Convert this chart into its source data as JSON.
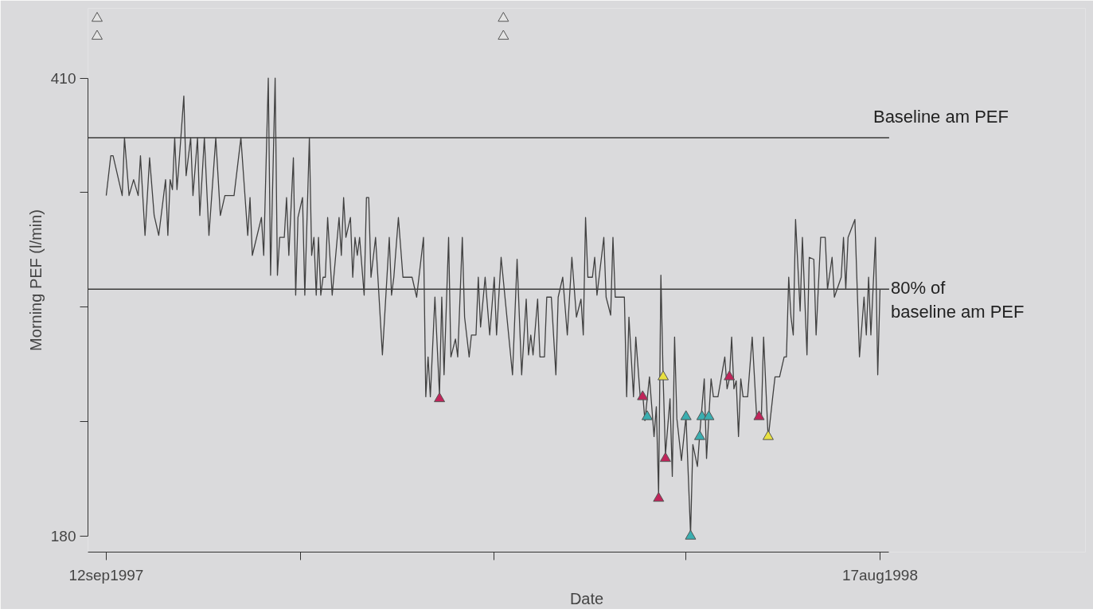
{
  "chart_data": {
    "type": "line",
    "xlabel": "Date",
    "ylabel": "Morning PEF (l/min)",
    "xlim": [
      "1997-09-04",
      "1998-08-21"
    ],
    "ylim": [
      172,
      445
    ],
    "xticks": [
      {
        "value": "1997-09-12",
        "label": "12sep1997"
      },
      {
        "value": "1997-12-06",
        "label": null
      },
      {
        "value": "1998-03-01",
        "label": null
      },
      {
        "value": "1998-05-24",
        "label": null
      },
      {
        "value": "1998-08-17",
        "label": "17aug1998"
      }
    ],
    "yticks": [
      180,
      {
        "value": 237.5,
        "label": null
      },
      {
        "value": 295,
        "label": null
      },
      {
        "value": 352.5,
        "label": null
      },
      410
    ],
    "grid": false,
    "ref_lines": [
      {
        "axis": "y",
        "value": 380,
        "label": "Baseline am PEF",
        "color": "#3a3a3a"
      },
      {
        "axis": "y",
        "value": 304,
        "label": "80% of\nbaseline am PEF",
        "color": "#3a3a3a"
      }
    ],
    "series": [
      {
        "color": "#404040",
        "marker": "none",
        "line_style": "solid",
        "x": [
          "1997-09-12",
          "1997-09-14",
          "1997-09-15",
          "1997-09-17",
          "1997-09-19",
          "1997-09-20",
          "1997-09-22",
          "1997-09-24",
          "1997-09-26",
          "1997-09-27",
          "1997-09-29",
          "1997-10-01",
          "1997-10-03",
          "1997-10-05",
          "1997-10-08",
          "1997-10-09",
          "1997-10-10",
          "1997-10-11",
          "1997-10-12",
          "1997-10-13",
          "1997-10-14",
          "1997-10-16",
          "1997-10-17",
          "1997-10-19",
          "1997-10-20",
          "1997-10-22",
          "1997-10-23",
          "1997-10-25",
          "1997-10-27",
          "1997-10-30",
          "1997-11-01",
          "1997-11-03",
          "1997-11-07",
          "1997-11-10",
          "1997-11-13",
          "1997-11-14",
          "1997-11-15",
          "1997-11-19",
          "1997-11-20",
          "1997-11-22",
          "1997-11-23",
          "1997-11-25",
          "1997-11-26",
          "1997-11-27",
          "1997-11-29",
          "1997-11-30",
          "1997-12-01",
          "1997-12-03",
          "1997-12-04",
          "1997-12-05",
          "1997-12-07",
          "1997-12-08",
          "1997-12-10",
          "1997-12-11",
          "1997-12-12",
          "1997-12-13",
          "1997-12-14",
          "1997-12-15",
          "1997-12-16",
          "1997-12-17",
          "1997-12-18",
          "1997-12-20",
          "1997-12-23",
          "1997-12-24",
          "1997-12-25",
          "1997-12-26",
          "1997-12-28",
          "1997-12-29",
          "1997-12-30",
          "1997-12-31",
          "1998-01-01",
          "1998-01-03",
          "1998-01-04",
          "1998-01-05",
          "1998-01-06",
          "1998-01-08",
          "1998-01-11",
          "1998-01-14",
          "1998-01-15",
          "1998-01-16",
          "1998-01-18",
          "1998-01-20",
          "1998-01-24",
          "1998-01-26",
          "1998-01-29",
          "1998-01-30",
          "1998-01-31",
          "1998-02-01",
          "1998-02-03",
          "1998-02-05",
          "1998-02-06",
          "1998-02-07",
          "1998-02-09",
          "1998-02-10",
          "1998-02-12",
          "1998-02-13",
          "1998-02-15",
          "1998-02-16",
          "1998-02-18",
          "1998-02-19",
          "1998-02-21",
          "1998-02-22",
          "1998-02-23",
          "1998-02-25",
          "1998-02-27",
          "1998-03-01",
          "1998-03-02",
          "1998-03-04",
          "1998-03-09",
          "1998-03-11",
          "1998-03-13",
          "1998-03-15",
          "1998-03-16",
          "1998-03-17",
          "1998-03-18",
          "1998-03-20",
          "1998-03-21",
          "1998-03-23",
          "1998-03-24",
          "1998-03-26",
          "1998-03-28",
          "1998-03-29",
          "1998-03-31",
          "1998-04-02",
          "1998-04-04",
          "1998-04-06",
          "1998-04-08",
          "1998-04-09",
          "1998-04-10",
          "1998-04-11",
          "1998-04-13",
          "1998-04-14",
          "1998-04-15",
          "1998-04-18",
          "1998-04-19",
          "1998-04-21",
          "1998-04-22",
          "1998-04-23",
          "1998-04-27",
          "1998-04-28",
          "1998-04-29",
          "1998-05-01",
          "1998-05-02",
          "1998-05-04",
          "1998-05-05",
          "1998-05-06",
          "1998-05-08",
          "1998-05-10",
          "1998-05-11",
          "1998-05-12",
          "1998-05-13",
          "1998-05-14",
          "1998-05-15",
          "1998-05-17",
          "1998-05-18",
          "1998-05-19",
          "1998-05-20",
          "1998-05-22",
          "1998-05-24",
          "1998-05-26",
          "1998-05-27",
          "1998-05-29",
          "1998-05-30",
          "1998-06-01",
          "1998-06-02",
          "1998-06-03",
          "1998-06-04",
          "1998-06-05",
          "1998-06-07",
          "1998-06-10",
          "1998-06-11",
          "1998-06-12",
          "1998-06-13",
          "1998-06-14",
          "1998-06-15",
          "1998-06-16",
          "1998-06-17",
          "1998-06-18",
          "1998-06-20",
          "1998-06-22",
          "1998-06-24",
          "1998-06-26",
          "1998-06-27",
          "1998-06-29",
          "1998-07-01",
          "1998-07-02",
          "1998-07-04",
          "1998-07-06",
          "1998-07-07",
          "1998-07-08",
          "1998-07-09",
          "1998-07-10",
          "1998-07-11",
          "1998-07-13",
          "1998-07-14",
          "1998-07-16",
          "1998-07-17",
          "1998-07-19",
          "1998-07-20",
          "1998-07-22",
          "1998-07-24",
          "1998-07-25",
          "1998-07-27",
          "1998-07-28",
          "1998-07-31",
          "1998-08-01",
          "1998-08-02",
          "1998-08-03",
          "1998-08-06",
          "1998-08-08",
          "1998-08-10",
          "1998-08-11",
          "1998-08-12",
          "1998-08-13",
          "1998-08-15",
          "1998-08-16",
          "1998-08-17"
        ],
        "values": [
          351,
          371,
          371,
          361,
          351,
          380,
          351,
          359,
          351,
          371,
          331,
          370,
          341,
          331,
          359,
          331,
          359,
          354,
          380,
          354,
          369,
          401,
          361,
          380,
          351,
          380,
          341,
          380,
          331,
          380,
          341,
          351,
          351,
          380,
          331,
          350,
          321,
          340,
          321,
          410,
          311,
          410,
          311,
          330,
          330,
          350,
          321,
          370,
          301,
          340,
          350,
          301,
          380,
          321,
          330,
          301,
          330,
          301,
          310,
          310,
          340,
          301,
          340,
          321,
          350,
          330,
          340,
          310,
          330,
          321,
          330,
          301,
          350,
          350,
          310,
          330,
          271,
          330,
          301,
          310,
          340,
          310,
          310,
          300,
          330,
          250,
          270,
          250,
          300,
          251,
          300,
          261,
          330,
          270,
          279,
          270,
          330,
          290,
          270,
          281,
          281,
          310,
          285,
          310,
          281,
          310,
          281,
          320,
          261,
          319,
          261,
          299,
          271,
          281,
          271,
          299,
          270,
          270,
          300,
          300,
          261,
          300,
          310,
          281,
          320,
          290,
          299,
          281,
          340,
          310,
          310,
          320,
          301,
          330,
          300,
          291,
          330,
          300,
          300,
          250,
          290,
          250,
          280,
          249,
          252,
          238,
          260,
          230,
          245,
          201,
          311,
          259,
          221,
          249,
          210,
          280,
          239,
          218,
          240,
          181,
          226,
          215,
          231,
          259,
          219,
          240,
          259,
          250,
          250,
          270,
          254,
          259,
          280,
          254,
          258,
          230,
          259,
          250,
          250,
          280,
          239,
          239,
          280,
          229,
          250,
          260,
          260,
          270,
          270,
          310,
          290,
          281,
          339,
          293,
          330,
          271,
          320,
          319,
          281,
          330,
          330,
          304,
          320,
          300,
          310,
          330,
          304,
          330,
          339,
          270,
          300,
          281,
          310,
          281,
          330,
          261,
          304
        ]
      },
      {
        "type": "scatter",
        "color": "#c0245a",
        "marker": "triangle",
        "x": [
          "1998-02-05",
          "1998-05-05",
          "1998-05-12",
          "1998-05-15",
          "1998-06-12",
          "1998-06-25"
        ],
        "values": [
          249,
          250,
          199,
          219,
          260,
          240
        ]
      },
      {
        "type": "scatter",
        "color": "#3aaeb0",
        "marker": "triangle",
        "x": [
          "1998-05-07",
          "1998-05-24",
          "1998-05-26",
          "1998-05-30",
          "1998-05-31",
          "1998-06-03"
        ],
        "values": [
          240,
          240,
          180,
          230,
          240,
          240
        ]
      },
      {
        "type": "scatter",
        "color": "#e8e040",
        "marker": "triangle",
        "x": [
          "1998-05-14",
          "1998-06-29"
        ],
        "values": [
          260,
          230
        ]
      },
      {
        "type": "scatter",
        "color": "#e4e4e4",
        "marker": "triangle",
        "x": [
          "1997-09-08",
          "1997-09-08",
          "1998-03-05",
          "1998-03-05"
        ],
        "values": [
          440,
          431,
          440,
          431
        ]
      }
    ]
  }
}
